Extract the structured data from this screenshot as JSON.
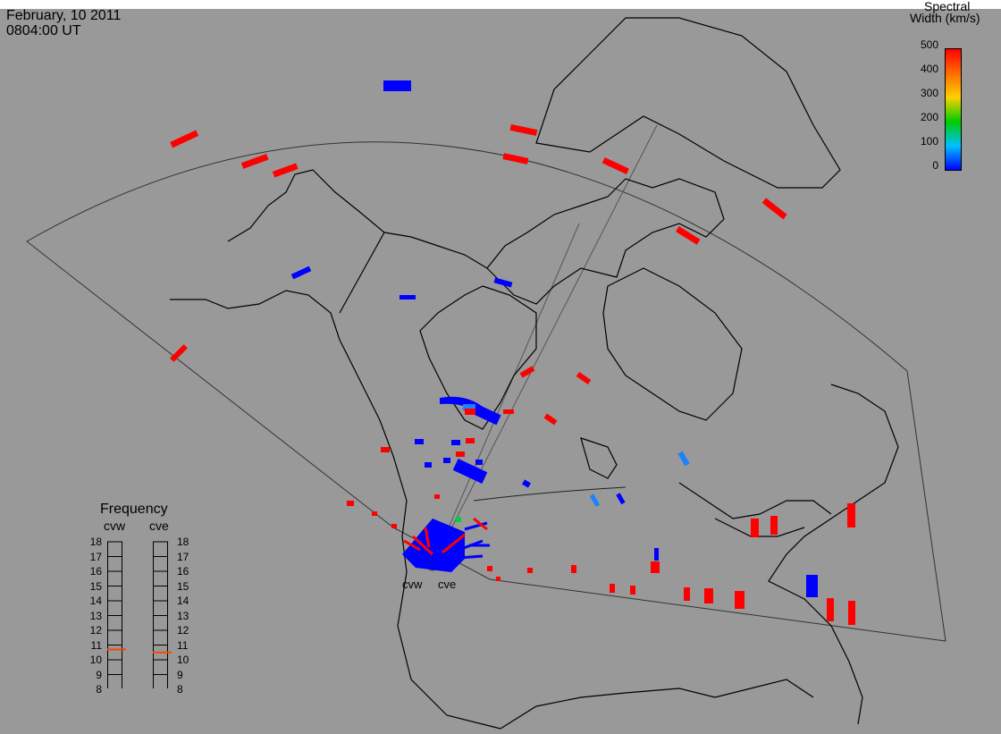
{
  "header": {
    "date": "February, 10 2011",
    "time": "0804:00 UT"
  },
  "colorbar": {
    "title_line1": "Spectral",
    "title_line2": "Width (km/s)",
    "ticks": [
      "500",
      "400",
      "300",
      "200",
      "100",
      "0"
    ],
    "colors": [
      "#ff0000",
      "#ffa500",
      "#ffff00",
      "#00ff00",
      "#00ffff",
      "#0000ff"
    ]
  },
  "radars": {
    "cvw_label": "cvw",
    "cve_label": "cve"
  },
  "frequency": {
    "title": "Frequency",
    "cvw_label": "cvw",
    "cve_label": "cve",
    "scale": [
      "18",
      "17",
      "16",
      "15",
      "14",
      "13",
      "12",
      "11",
      "10",
      "9",
      "8"
    ],
    "cvw_value": 10.7,
    "cve_value": 10.5
  },
  "colors": {
    "background": "#999999",
    "red_echo": "#ff0000",
    "blue_echo": "#0000ff",
    "cyan_echo": "#0080ff",
    "green_echo": "#00cc44",
    "freq_marker": "#ff4400"
  }
}
